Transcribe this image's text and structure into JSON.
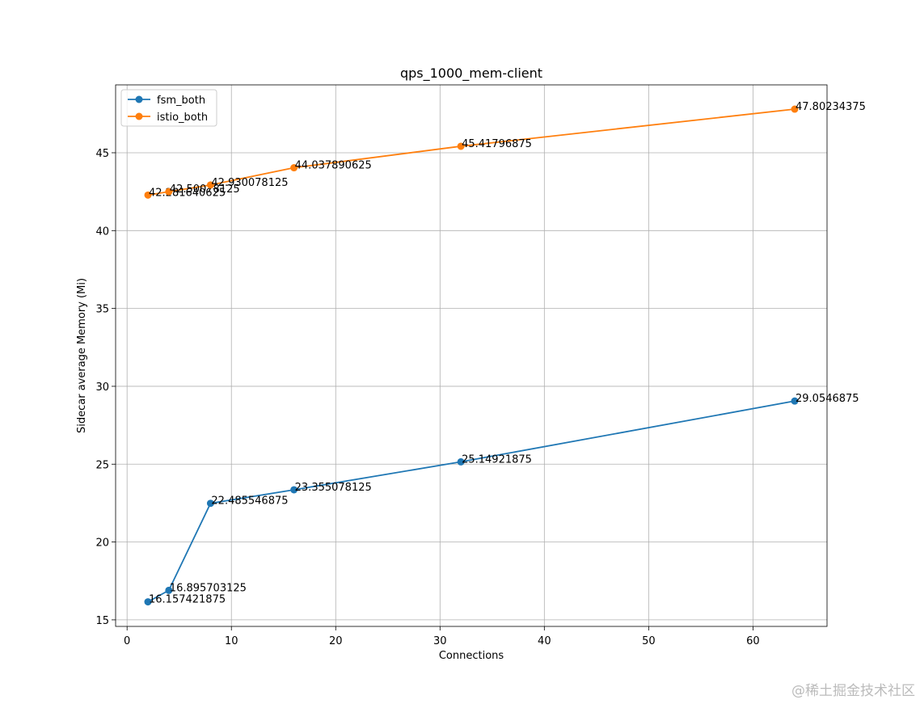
{
  "chart_data": {
    "type": "line",
    "title": "qps_1000_mem-client",
    "x_label": "Connections",
    "y_label": "Sidecar average Memory (Mi)",
    "x": [
      2,
      4,
      8,
      16,
      32,
      64
    ],
    "series": [
      {
        "name": "fsm_both",
        "color": "#1f77b4",
        "values": [
          16.157421875,
          16.895703125,
          22.485546875,
          23.355078125,
          25.14921875,
          29.0546875
        ]
      },
      {
        "name": "istio_both",
        "color": "#ff7f0e",
        "values": [
          42.281640625,
          42.50078125,
          42.930078125,
          44.037890625,
          45.41796875,
          47.80234375
        ]
      }
    ],
    "xlim": [
      -1.1,
      67.1
    ],
    "ylim": [
      14.58,
      49.36
    ],
    "xticks": [
      0,
      10,
      20,
      30,
      40,
      50,
      60
    ],
    "yticks": [
      15,
      20,
      25,
      30,
      35,
      40,
      45
    ],
    "grid": true,
    "legend": "upper left",
    "watermark": "@稀土掘金技术社区"
  }
}
